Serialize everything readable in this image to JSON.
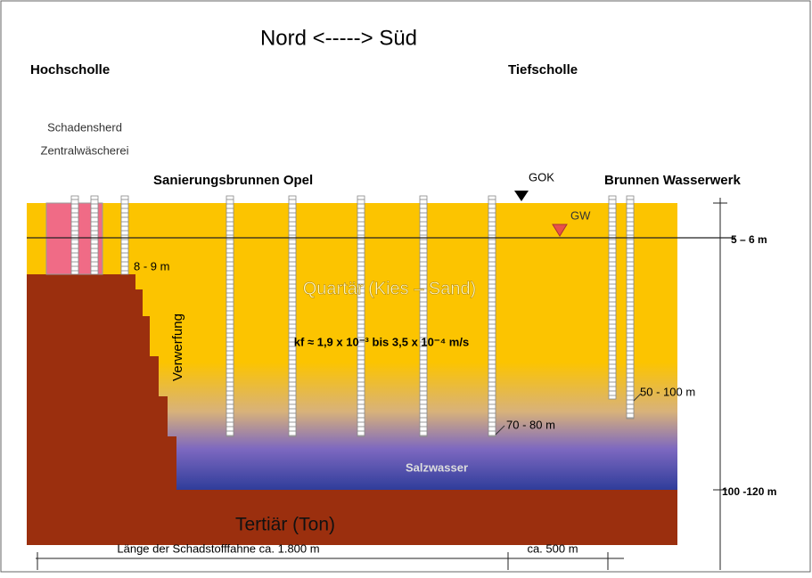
{
  "title": "Nord <-----> Süd",
  "labels": {
    "left_block": "Hochscholle",
    "right_block": "Tiefscholle",
    "source_line1": "Schadensherd",
    "source_line2": "Zentralwäscherei",
    "remediation_wells": "Sanierungsbrunnen Opel",
    "ground_surface": "GOK",
    "waterworks_wells": "Brunnen Wasserwerk",
    "groundwater": "GW",
    "depth_gw": "5 – 6 m",
    "depth_source": "8 - 9 m",
    "quaternary": "Quartär (Kies – Sand)",
    "fault": "Verwerfung",
    "permeability": "kf ≈ 1,9 x 10⁻³ bis 3,5 x 10⁻⁴ m/s",
    "depth_waterworks": "50 - 100 m",
    "depth_remediation": "70 - 80 m",
    "saltwater": "Salzwasser",
    "depth_tertiary": "100 -120 m",
    "tertiary": "Tertiär (Ton)",
    "plume_length": "Länge der Schadstofffahne ca. 1.800 m",
    "extra_length": "ca. 500 m"
  }
}
